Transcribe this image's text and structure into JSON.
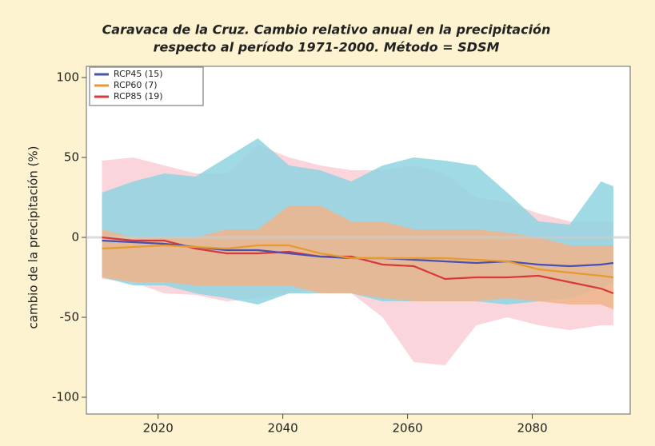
{
  "chart_data": {
    "type": "line",
    "title": [
      "Caravaca de la Cruz. Cambio relativo anual en la precipitación",
      "respecto al período 1971-2000. Método = SDSM"
    ],
    "y_label": "cambio de la precipitación (%)",
    "x": [
      2011,
      2016,
      2021,
      2026,
      2031,
      2036,
      2041,
      2046,
      2051,
      2056,
      2061,
      2066,
      2071,
      2076,
      2081,
      2086,
      2091,
      2093
    ],
    "series": [
      {
        "name": "RCP85 (19)",
        "color": "#d8393a",
        "band_color": "#f9cfd6",
        "values": [
          0,
          -2,
          -2,
          -7,
          -10,
          -10,
          -9,
          -12,
          -12,
          -17,
          -18,
          -26,
          -25,
          -25,
          -24,
          -28,
          -32,
          -35
        ],
        "band_upper": [
          48,
          50,
          45,
          40,
          40,
          58,
          50,
          45,
          42,
          42,
          45,
          40,
          25,
          22,
          15,
          10,
          10,
          10
        ],
        "band_lower": [
          -26,
          -28,
          -35,
          -36,
          -40,
          -38,
          -35,
          -32,
          -35,
          -50,
          -78,
          -80,
          -55,
          -50,
          -55,
          -58,
          -55,
          -55
        ]
      },
      {
        "name": "RCP45 (15)",
        "color": "#4a4fb0",
        "band_color": "#8fd3e0",
        "values": [
          -2,
          -3,
          -4,
          -6,
          -8,
          -8,
          -10,
          -12,
          -13,
          -13,
          -14,
          -15,
          -16,
          -15,
          -17,
          -18,
          -17,
          -16
        ],
        "band_upper": [
          28,
          35,
          40,
          38,
          50,
          62,
          45,
          42,
          35,
          45,
          50,
          48,
          45,
          28,
          10,
          8,
          35,
          32
        ],
        "band_lower": [
          -25,
          -30,
          -30,
          -35,
          -38,
          -42,
          -35,
          -35,
          -35,
          -40,
          -40,
          -40,
          -40,
          -42,
          -40,
          -38,
          -32,
          -28
        ]
      },
      {
        "name": "RCP60 (7)",
        "color": "#e89a2c",
        "band_color": "#f0b48a",
        "values": [
          -7,
          -6,
          -5,
          -6,
          -7,
          -5,
          -5,
          -10,
          -13,
          -13,
          -13,
          -13,
          -14,
          -15,
          -20,
          -22,
          -24,
          -25
        ],
        "band_upper": [
          5,
          0,
          0,
          0,
          5,
          5,
          20,
          20,
          10,
          10,
          5,
          5,
          5,
          3,
          0,
          -5,
          -5,
          -5
        ],
        "band_lower": [
          -25,
          -28,
          -28,
          -30,
          -30,
          -30,
          -30,
          -35,
          -35,
          -38,
          -40,
          -40,
          -40,
          -38,
          -40,
          -42,
          -42,
          -45
        ]
      }
    ],
    "legend_order": [
      1,
      2,
      0
    ],
    "xlim": [
      2008.5,
      2095.7
    ],
    "xticks": [
      2020,
      2040,
      2060,
      2080
    ],
    "ylim": [
      -110.5,
      107
    ],
    "yticks": [
      -100,
      -50,
      0,
      50,
      100
    ],
    "zero_line": true,
    "legend": "upper left"
  }
}
